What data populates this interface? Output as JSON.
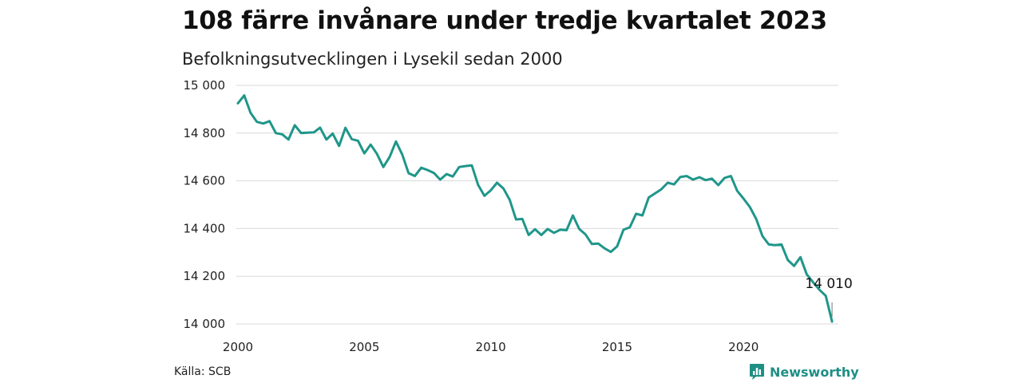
{
  "header": {
    "title": "108 färre invånare under tredje kvartalet 2023",
    "subtitle": "Befolkningsutvecklingen i Lysekil sedan 2000"
  },
  "footer": {
    "source": "Källa: SCB",
    "brand": "Newsworthy",
    "brand_icon": "chart-icon"
  },
  "colors": {
    "line": "#1f968a",
    "grid": "#d9d9d9",
    "brand": "#1f8f85"
  },
  "chart_data": {
    "type": "line",
    "title": "108 färre invånare under tredje kvartalet 2023",
    "subtitle": "Befolkningsutvecklingen i Lysekil sedan 2000",
    "xlabel": "",
    "ylabel": "",
    "xlim": [
      2000,
      2023.75
    ],
    "ylim": [
      14000,
      15000
    ],
    "x_ticks": [
      2000,
      2005,
      2010,
      2015,
      2020
    ],
    "x_tick_labels": [
      "2000",
      "2005",
      "2010",
      "2015",
      "2020"
    ],
    "y_ticks": [
      14000,
      14200,
      14400,
      14600,
      14800,
      15000
    ],
    "y_tick_labels": [
      "14 000",
      "14 200",
      "14 400",
      "14 600",
      "14 800",
      "15 000"
    ],
    "grid": true,
    "legend": "none",
    "frequency": "quarterly",
    "start": "2000-Q1",
    "end": "2023-Q3",
    "annotation": {
      "text": "14 010",
      "x": 2023.5,
      "y": 14010
    },
    "series": [
      {
        "values": [
          14925,
          14958,
          14885,
          14847,
          14840,
          14850,
          14800,
          14795,
          14773,
          14833,
          14800,
          14802,
          14803,
          14823,
          14773,
          14798,
          14746,
          14822,
          14775,
          14768,
          14715,
          14752,
          14713,
          14658,
          14700,
          14765,
          14710,
          14632,
          14620,
          14655,
          14645,
          14633,
          14605,
          14628,
          14618,
          14658,
          14662,
          14665,
          14583,
          14537,
          14560,
          14592,
          14568,
          14520,
          14438,
          14440,
          14373,
          14397,
          14373,
          14398,
          14382,
          14395,
          14393,
          14455,
          14398,
          14375,
          14335,
          14337,
          14317,
          14302,
          14325,
          14395,
          14405,
          14462,
          14455,
          14530,
          14547,
          14565,
          14592,
          14585,
          14616,
          14620,
          14605,
          14615,
          14603,
          14609,
          14582,
          14612,
          14620,
          14558,
          14525,
          14490,
          14440,
          14368,
          14333,
          14330,
          14333,
          14268,
          14243,
          14280,
          14208,
          14175,
          14143,
          14118,
          14010
        ]
      }
    ]
  }
}
